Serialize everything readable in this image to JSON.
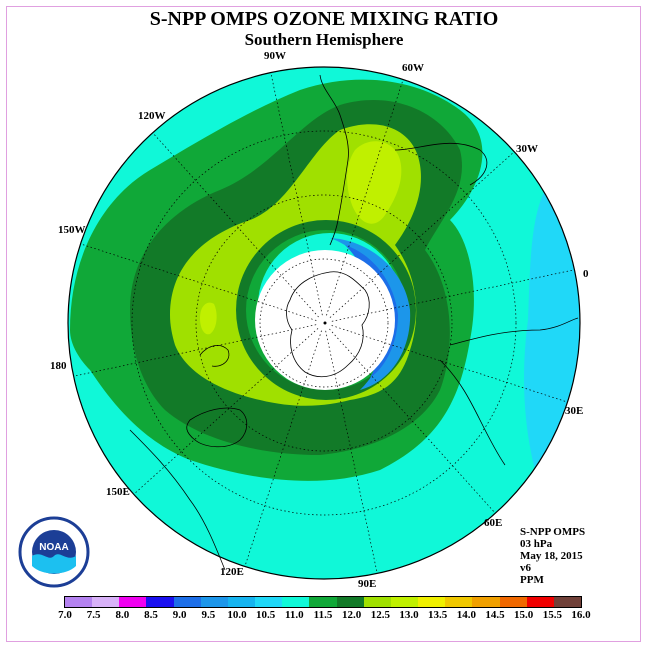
{
  "title": "S-NPP OMPS OZONE MIXING RATIO",
  "subtitle": "Southern Hemisphere",
  "longitude_labels": [
    "90W",
    "60W",
    "30W",
    "0",
    "30E",
    "60E",
    "90E",
    "120E",
    "150E",
    "180",
    "150W",
    "120W"
  ],
  "info": {
    "line1": "S-NPP OMPS",
    "line2": "03 hPa",
    "line3": "May 18, 2015",
    "line4": "v6",
    "line5": "PPM"
  },
  "logo": {
    "text": "NOAA"
  },
  "colorbar": {
    "ticks": [
      "7.0",
      "7.5",
      "8.0",
      "8.5",
      "9.0",
      "9.5",
      "10.0",
      "10.5",
      "11.0",
      "11.5",
      "12.0",
      "12.5",
      "13.0",
      "13.5",
      "14.0",
      "14.5",
      "15.0",
      "15.5",
      "16.0"
    ],
    "colors": [
      "#b482f0",
      "#d8b2f8",
      "#f000f0",
      "#1a10f0",
      "#1c6ee8",
      "#1c96ea",
      "#16b4f0",
      "#20d8f8",
      "#10f8d8",
      "#10a838",
      "#127a28",
      "#a0e000",
      "#c0f000",
      "#f0f000",
      "#f0c800",
      "#f0a000",
      "#f06800",
      "#f00000",
      "#704038"
    ]
  },
  "map_data": {
    "projection": "polar stereographic, south pole centered",
    "region_colors": {
      "outer": "#10f8d8",
      "band_11_5": "#10a838",
      "band_12": "#127a28",
      "band_12_5": "#a0e000",
      "band_13": "#c0f000",
      "edge_low": "#20d8f8",
      "inner_blue": "#1c96ea",
      "inner_dark": "#1c6ee8",
      "polar_night": "#ffffff"
    }
  }
}
